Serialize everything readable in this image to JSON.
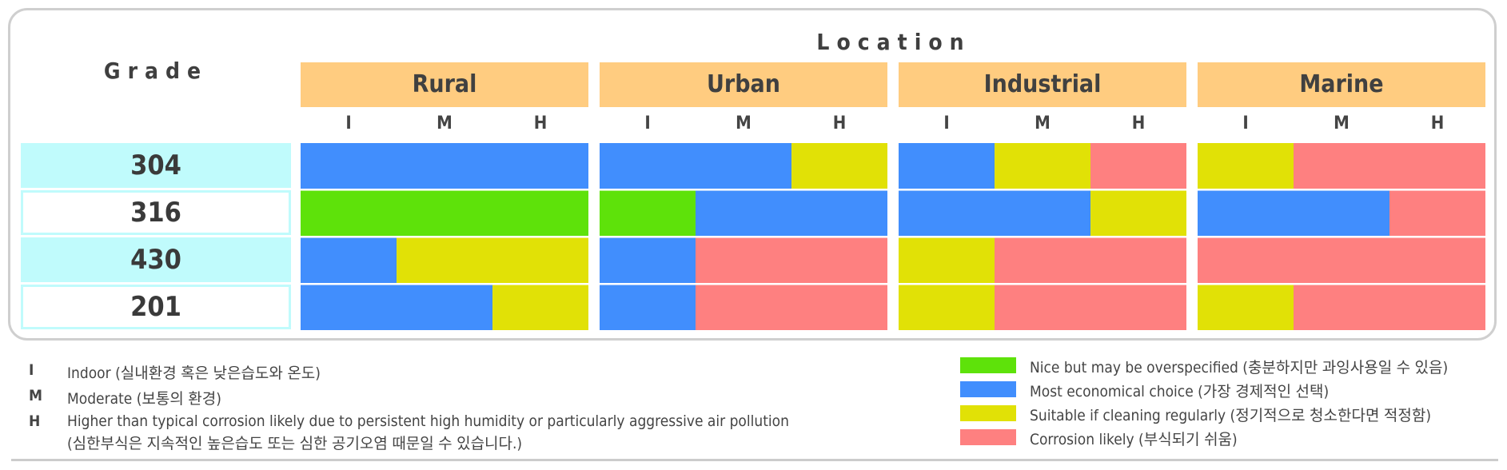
{
  "chart_data": {
    "type": "heatmap",
    "column_group_heading": "Location",
    "row_heading": "Grade",
    "locations": [
      "Rural",
      "Urban",
      "Industrial",
      "Marine"
    ],
    "levels": [
      "I",
      "M",
      "H"
    ],
    "grades": [
      "304",
      "316",
      "430",
      "201"
    ],
    "legend": [
      {
        "key": "overspecified",
        "label": "Nice but may be overspecified (충분하지만 과잉사용일 수 있음)",
        "color": "#5ee20a"
      },
      {
        "key": "economical",
        "label": "Most economical choice (가장 경제적인 선택)",
        "color": "#418efd"
      },
      {
        "key": "cleaning",
        "label": "Suitable if cleaning regularly (정기적으로 청소한다면 적정함)",
        "color": "#e1e106"
      },
      {
        "key": "corrosion",
        "label": "Corrosion likely (부식되기 쉬움)",
        "color": "#fe8080"
      }
    ],
    "ratings": {
      "304": {
        "Rural": [
          [
            0,
            3,
            "economical"
          ]
        ],
        "Urban": [
          [
            0,
            2,
            "economical"
          ],
          [
            2,
            3,
            "cleaning"
          ]
        ],
        "Industrial": [
          [
            0,
            1,
            "economical"
          ],
          [
            1,
            2,
            "cleaning"
          ],
          [
            2,
            3,
            "corrosion"
          ]
        ],
        "Marine": [
          [
            0,
            1,
            "cleaning"
          ],
          [
            1,
            3,
            "corrosion"
          ]
        ]
      },
      "316": {
        "Rural": [
          [
            0,
            3,
            "overspecified"
          ]
        ],
        "Urban": [
          [
            0,
            1,
            "overspecified"
          ],
          [
            1,
            3,
            "economical"
          ]
        ],
        "Industrial": [
          [
            0,
            2,
            "economical"
          ],
          [
            2,
            3,
            "cleaning"
          ]
        ],
        "Marine": [
          [
            0,
            2,
            "economical"
          ],
          [
            2,
            3,
            "corrosion"
          ]
        ]
      },
      "430": {
        "Rural": [
          [
            0,
            1,
            "economical"
          ],
          [
            1,
            3,
            "cleaning"
          ]
        ],
        "Urban": [
          [
            0,
            1,
            "economical"
          ],
          [
            1,
            3,
            "corrosion"
          ]
        ],
        "Industrial": [
          [
            0,
            1,
            "cleaning"
          ],
          [
            1,
            3,
            "corrosion"
          ]
        ],
        "Marine": [
          [
            0,
            3,
            "corrosion"
          ]
        ]
      },
      "201": {
        "Rural": [
          [
            0,
            2,
            "economical"
          ],
          [
            2,
            3,
            "cleaning"
          ]
        ],
        "Urban": [
          [
            0,
            1,
            "economical"
          ],
          [
            1,
            3,
            "corrosion"
          ]
        ],
        "Industrial": [
          [
            0,
            1,
            "cleaning"
          ],
          [
            1,
            3,
            "corrosion"
          ]
        ],
        "Marine": [
          [
            0,
            1,
            "cleaning"
          ],
          [
            1,
            3,
            "corrosion"
          ]
        ]
      }
    }
  },
  "footnotes": [
    {
      "key": "I",
      "text": "Indoor (실내환경 혹은 낮은습도와 온도)"
    },
    {
      "key": "M",
      "text": "Moderate (보통의 환경)"
    },
    {
      "key": "H",
      "text": "Higher than typical corrosion likely due to persistent high humidity or particularly aggressive air pollution",
      "text2": "(심한부식은 지속적인 높은습도 또는 심한 공기오염 때문일 수 있습니다.)"
    }
  ],
  "colors": {
    "header_fill": "#ffcc80",
    "grade_fill_alt": "#c0fbfc",
    "frame_border": "#cfcfcf"
  }
}
